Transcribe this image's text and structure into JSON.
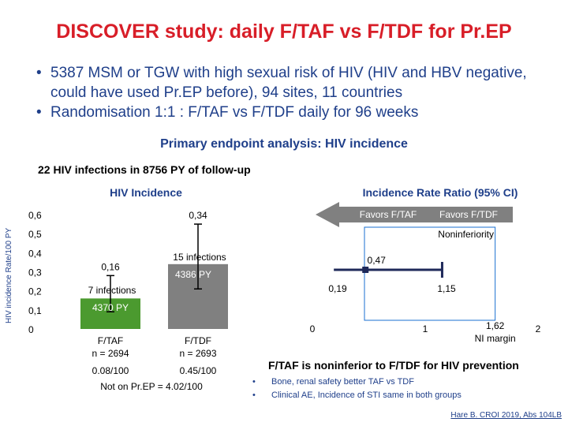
{
  "title": "DISCOVER study: daily F/TAF vs F/TDF for Pr.EP",
  "bullets": [
    "5387 MSM or TGW with high sexual risk of HIV (HIV and HBV negative, could have used Pr.EP before), 94 sites, 11 countries",
    "Randomisation 1:1 : F/TAF vs F/TDF daily for 96 weeks"
  ],
  "subtitle": "Primary endpoint analysis: HIV incidence",
  "infections_summary": "22 HIV infections in 8756 PY of follow-up",
  "side_axis_label": "HIV incidence Rate/100 PY",
  "chart_data": [
    {
      "type": "bar",
      "title": "HIV Incidence",
      "ylabel": "HIV incidence Rate/100 PY",
      "ylim": [
        0,
        0.6
      ],
      "yticks": [
        "0",
        "0,1",
        "0,2",
        "0,3",
        "0,4",
        "0,5",
        "0,6"
      ],
      "categories": [
        "F/TAF",
        "F/TDF"
      ],
      "category_labels": [
        [
          "F/TAF",
          "n = 2694"
        ],
        [
          "F/TDF",
          "n = 2693"
        ]
      ],
      "values": [
        0.16,
        0.34
      ],
      "value_labels": [
        "0,16",
        "0,34"
      ],
      "ci_low": [
        0.09,
        0.21
      ],
      "ci_high": [
        0.28,
        0.55
      ],
      "infections_labels": [
        "7 infections",
        "15 infections"
      ],
      "py_labels": [
        "4370 PY",
        "4386 PY"
      ],
      "rate_labels": [
        "0.08/100",
        "0.45/100"
      ],
      "footnote": "Not on Pr.EP = 4.02/100",
      "colors": [
        "#4b9a2f",
        "#808080"
      ]
    },
    {
      "type": "forest",
      "title": "Incidence Rate Ratio (95% CI)",
      "xlim": [
        0,
        2
      ],
      "xticks": [
        "0",
        "1",
        "2"
      ],
      "point": 0.47,
      "point_label": "0,47",
      "ci": [
        0.19,
        1.15
      ],
      "ci_labels": [
        "0,19",
        "1,15"
      ],
      "ni_margin": 1.62,
      "ni_margin_label": [
        "1,62",
        "NI margin"
      ],
      "favors_left": "Favors F/TAF",
      "favors_right": "Favors F/TDF",
      "region_label": "Noninferiority",
      "colors": {
        "arrow": "#808080",
        "point": "#1f2a5a",
        "ci": "#1f2a5a",
        "region_border": "#1a6fd0"
      }
    }
  ],
  "conclusion": "F/TAF is noninferior to F/TDF for HIV prevention",
  "points": [
    "Bone, renal safety better TAF vs TDF",
    "Clinical AE, Incidence of STI same in both groups"
  ],
  "reference": "Hare B. CROI 2019, Abs 104LB",
  "colors": {
    "title": "#d81e28",
    "text": "#1f3f8a"
  }
}
